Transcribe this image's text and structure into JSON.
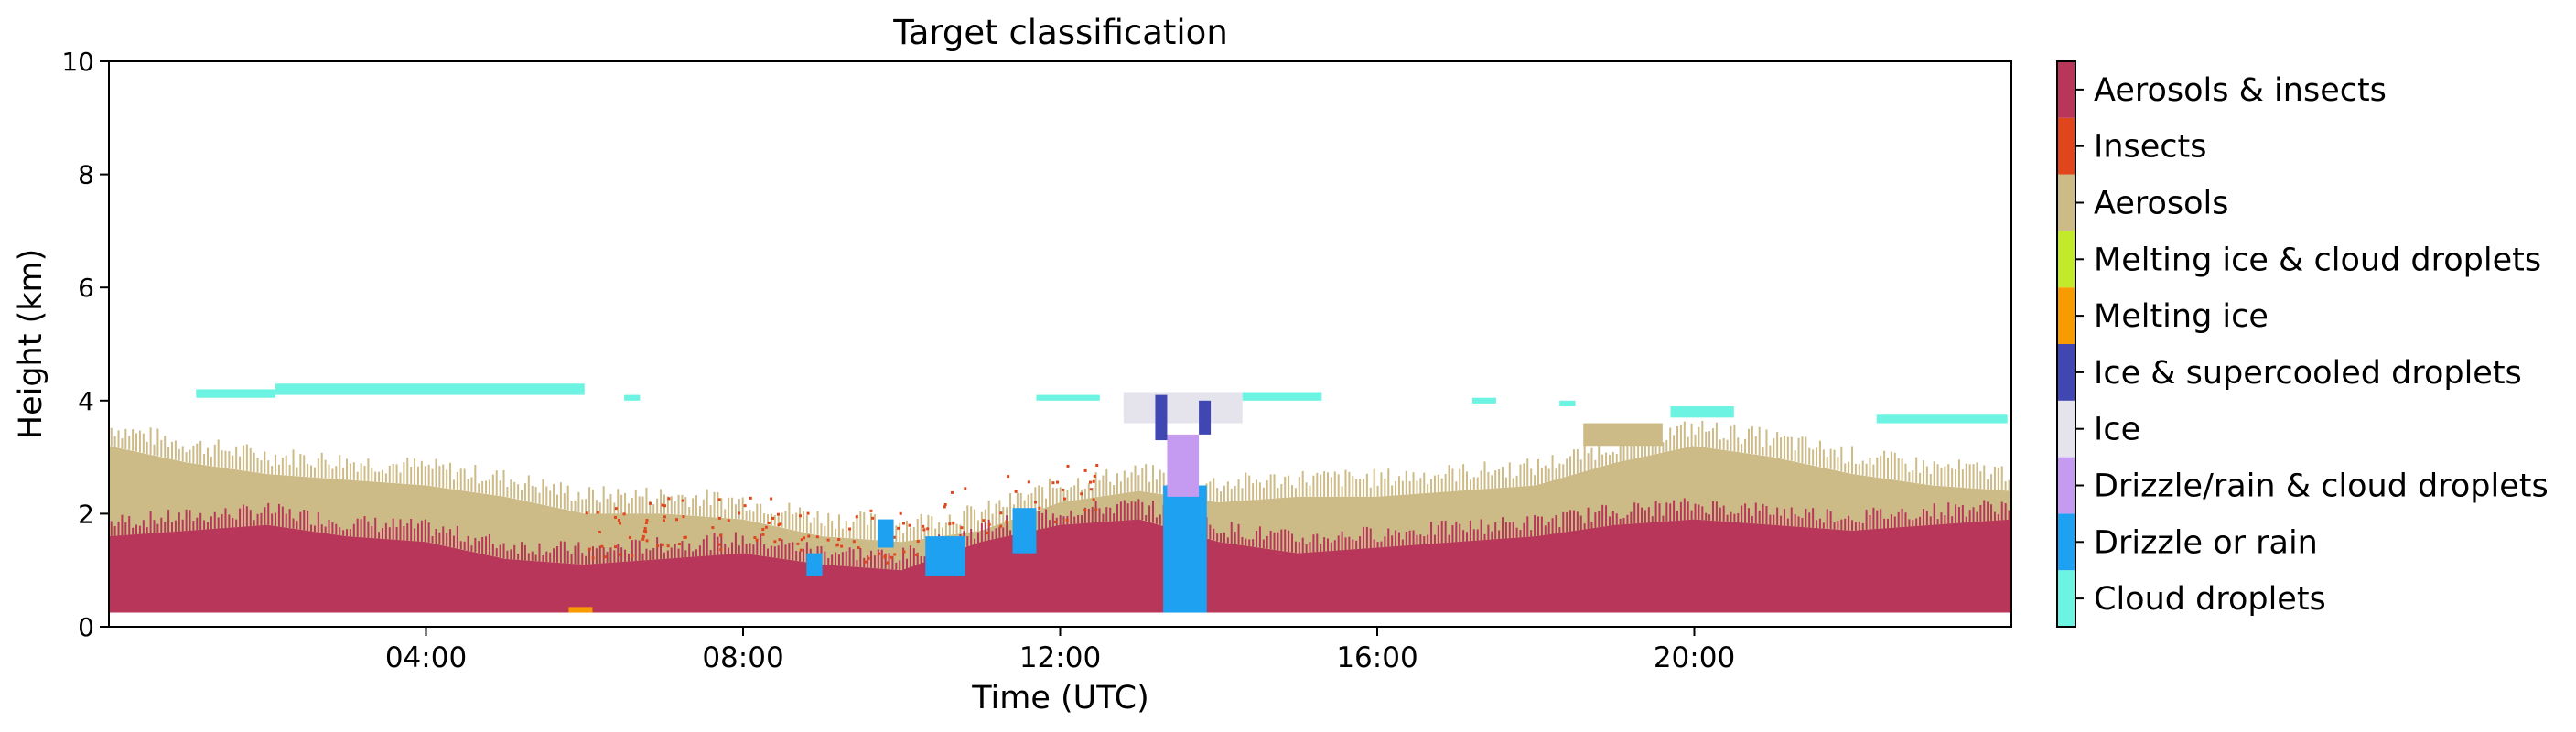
{
  "chart_data": {
    "type": "heatmap",
    "title": "Target classification",
    "xlabel": "Time (UTC)",
    "ylabel": "Height (km)",
    "xlim": [
      0,
      24
    ],
    "ylim": [
      0,
      10
    ],
    "x_ticks": [
      {
        "value": 4,
        "label": "04:00"
      },
      {
        "value": 8,
        "label": "08:00"
      },
      {
        "value": 12,
        "label": "12:00"
      },
      {
        "value": 16,
        "label": "16:00"
      },
      {
        "value": 20,
        "label": "20:00"
      }
    ],
    "y_ticks": [
      {
        "value": 0,
        "label": "0"
      },
      {
        "value": 2,
        "label": "2"
      },
      {
        "value": 4,
        "label": "4"
      },
      {
        "value": 6,
        "label": "6"
      },
      {
        "value": 8,
        "label": "8"
      },
      {
        "value": 10,
        "label": "10"
      }
    ],
    "grid": false,
    "colorbar_position": "right",
    "classes": [
      {
        "label": "Cloud droplets",
        "color": "#6cf3e2"
      },
      {
        "label": "Drizzle or rain",
        "color": "#1ea1f0"
      },
      {
        "label": "Drizzle/rain & cloud droplets",
        "color": "#c59bf2"
      },
      {
        "label": "Ice",
        "color": "#e5e4ec"
      },
      {
        "label": "Ice & supercooled droplets",
        "color": "#4047b3"
      },
      {
        "label": "Melting ice",
        "color": "#f79b00"
      },
      {
        "label": "Melting ice & cloud droplets",
        "color": "#c2ea2b"
      },
      {
        "label": "Aerosols",
        "color": "#cdbb87"
      },
      {
        "label": "Insects",
        "color": "#e0451c"
      },
      {
        "label": "Aerosols & insects",
        "color": "#b8365a"
      }
    ],
    "base_height_km": 0.25,
    "aerosol_insect_top_km": [
      [
        0,
        1.6
      ],
      [
        1,
        1.7
      ],
      [
        2,
        1.8
      ],
      [
        3,
        1.6
      ],
      [
        4,
        1.5
      ],
      [
        5,
        1.2
      ],
      [
        6,
        1.1
      ],
      [
        7,
        1.2
      ],
      [
        8,
        1.3
      ],
      [
        9,
        1.1
      ],
      [
        10,
        1.0
      ],
      [
        11,
        1.5
      ],
      [
        12,
        1.8
      ],
      [
        13,
        1.9
      ],
      [
        14,
        1.5
      ],
      [
        15,
        1.3
      ],
      [
        16,
        1.4
      ],
      [
        17,
        1.5
      ],
      [
        18,
        1.6
      ],
      [
        19,
        1.8
      ],
      [
        20,
        1.9
      ],
      [
        21,
        1.8
      ],
      [
        22,
        1.7
      ],
      [
        23,
        1.8
      ],
      [
        24,
        1.9
      ]
    ],
    "aerosol_top_km": [
      [
        0,
        3.2
      ],
      [
        1,
        2.9
      ],
      [
        2,
        2.7
      ],
      [
        3,
        2.6
      ],
      [
        4,
        2.5
      ],
      [
        5,
        2.3
      ],
      [
        6,
        2.0
      ],
      [
        7,
        2.0
      ],
      [
        8,
        1.9
      ],
      [
        9,
        1.6
      ],
      [
        10,
        1.5
      ],
      [
        11,
        1.7
      ],
      [
        12,
        2.2
      ],
      [
        13,
        2.4
      ],
      [
        14,
        2.2
      ],
      [
        15,
        2.3
      ],
      [
        16,
        2.3
      ],
      [
        17,
        2.4
      ],
      [
        18,
        2.5
      ],
      [
        19,
        2.9
      ],
      [
        20,
        3.2
      ],
      [
        21,
        3.0
      ],
      [
        22,
        2.7
      ],
      [
        23,
        2.5
      ],
      [
        24,
        2.4
      ]
    ],
    "cloud_layers": [
      {
        "class": "Cloud droplets",
        "t0": 1.1,
        "t1": 2.1,
        "h0": 4.05,
        "h1": 4.2
      },
      {
        "class": "Cloud droplets",
        "t0": 2.1,
        "t1": 6.0,
        "h0": 4.1,
        "h1": 4.3
      },
      {
        "class": "Cloud droplets",
        "t0": 6.5,
        "t1": 6.7,
        "h0": 4.0,
        "h1": 4.1
      },
      {
        "class": "Cloud droplets",
        "t0": 11.7,
        "t1": 12.5,
        "h0": 4.0,
        "h1": 4.1
      },
      {
        "class": "Ice",
        "t0": 12.8,
        "t1": 14.3,
        "h0": 3.6,
        "h1": 4.15
      },
      {
        "class": "Cloud droplets",
        "t0": 14.3,
        "t1": 15.3,
        "h0": 4.0,
        "h1": 4.15
      },
      {
        "class": "Cloud droplets",
        "t0": 17.2,
        "t1": 17.5,
        "h0": 3.95,
        "h1": 4.05
      },
      {
        "class": "Cloud droplets",
        "t0": 18.3,
        "t1": 18.5,
        "h0": 3.9,
        "h1": 4.0
      },
      {
        "class": "Cloud droplets",
        "t0": 19.7,
        "t1": 20.5,
        "h0": 3.7,
        "h1": 3.9
      },
      {
        "class": "Cloud droplets",
        "t0": 22.3,
        "t1": 23.95,
        "h0": 3.6,
        "h1": 3.75
      },
      {
        "class": "Aerosols",
        "t0": 18.6,
        "t1": 19.6,
        "h0": 3.2,
        "h1": 3.6
      }
    ],
    "precip_features": [
      {
        "class": "Drizzle or rain",
        "t0": 13.3,
        "t1": 13.85,
        "h0": 0.25,
        "h1": 2.5
      },
      {
        "class": "Drizzle/rain & cloud droplets",
        "t0": 13.35,
        "t1": 13.75,
        "h0": 2.3,
        "h1": 3.4
      },
      {
        "class": "Ice & supercooled droplets",
        "t0": 13.2,
        "t1": 13.35,
        "h0": 3.3,
        "h1": 4.1
      },
      {
        "class": "Ice & supercooled droplets",
        "t0": 13.75,
        "t1": 13.9,
        "h0": 3.4,
        "h1": 4.0
      },
      {
        "class": "Drizzle or rain",
        "t0": 10.3,
        "t1": 10.8,
        "h0": 0.9,
        "h1": 1.6
      },
      {
        "class": "Drizzle or rain",
        "t0": 11.4,
        "t1": 11.7,
        "h0": 1.3,
        "h1": 2.1
      },
      {
        "class": "Drizzle or rain",
        "t0": 8.8,
        "t1": 9.0,
        "h0": 0.9,
        "h1": 1.3
      },
      {
        "class": "Drizzle or rain",
        "t0": 9.7,
        "t1": 9.9,
        "h0": 1.4,
        "h1": 1.9
      },
      {
        "class": "Melting ice",
        "t0": 5.8,
        "t1": 6.1,
        "h0": 0.25,
        "h1": 0.35
      }
    ]
  }
}
